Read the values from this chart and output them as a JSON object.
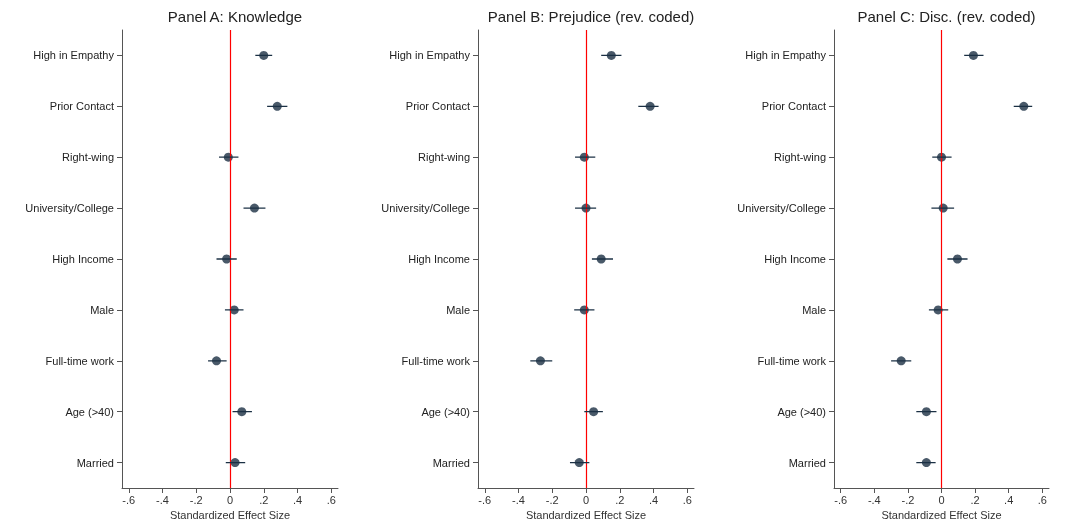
{
  "chart_data": [
    {
      "type": "scatter",
      "title": "Panel A: Knowledge",
      "xlabel": "Standardized Effect Size",
      "orientation": "horizontal",
      "categories": [
        "High in Empathy",
        "Prior Contact",
        "Right-wing",
        "University/College",
        "High Income",
        "Male",
        "Full-time work",
        "Age (>40)",
        "Married"
      ],
      "values": [
        0.2,
        0.28,
        -0.01,
        0.145,
        -0.02,
        0.025,
        -0.08,
        0.07,
        0.03
      ],
      "errors": [
        [
          0.15,
          0.25
        ],
        [
          0.22,
          0.34
        ],
        [
          -0.065,
          0.05
        ],
        [
          0.08,
          0.21
        ],
        [
          -0.08,
          0.04
        ],
        [
          -0.03,
          0.08
        ],
        [
          -0.13,
          -0.02
        ],
        [
          0.015,
          0.13
        ],
        [
          -0.025,
          0.09
        ]
      ],
      "color": "#1b3044",
      "marker": "circle",
      "grid": false,
      "xlim": [
        -0.64,
        0.64
      ],
      "xticks": [
        {
          "value": -0.6,
          "label": "-.6"
        },
        {
          "value": -0.4,
          "label": "-.4"
        },
        {
          "value": -0.2,
          "label": "-.2"
        },
        {
          "value": 0,
          "label": "0"
        },
        {
          "value": 0.2,
          "label": ".2"
        },
        {
          "value": 0.4,
          "label": ".4"
        },
        {
          "value": 0.6,
          "label": ".6"
        }
      ],
      "ref_lines": [
        {
          "axis": "x",
          "value": 0,
          "color": "#ff0000"
        }
      ]
    },
    {
      "type": "scatter",
      "title": "Panel B: Prejudice (rev. coded)",
      "xlabel": "Standardized Effect Size",
      "orientation": "horizontal",
      "categories": [
        "High in Empathy",
        "Prior Contact",
        "Right-wing",
        "University/College",
        "High Income",
        "Male",
        "Full-time work",
        "Age (>40)",
        "Married"
      ],
      "values": [
        0.15,
        0.38,
        -0.01,
        0,
        0.09,
        -0.01,
        -0.27,
        0.045,
        -0.04
      ],
      "errors": [
        [
          0.09,
          0.21
        ],
        [
          0.31,
          0.43
        ],
        [
          -0.065,
          0.055
        ],
        [
          -0.065,
          0.06
        ],
        [
          0.035,
          0.16
        ],
        [
          -0.07,
          0.05
        ],
        [
          -0.33,
          -0.2
        ],
        [
          -0.01,
          0.1
        ],
        [
          -0.095,
          0.02
        ]
      ],
      "color": "#1b3044",
      "marker": "circle",
      "grid": false,
      "xlim": [
        -0.64,
        0.64
      ],
      "xticks": [
        {
          "value": -0.6,
          "label": "-.6"
        },
        {
          "value": -0.4,
          "label": "-.4"
        },
        {
          "value": -0.2,
          "label": "-.2"
        },
        {
          "value": 0,
          "label": "0"
        },
        {
          "value": 0.2,
          "label": ".2"
        },
        {
          "value": 0.4,
          "label": ".4"
        },
        {
          "value": 0.6,
          "label": ".6"
        }
      ],
      "ref_lines": [
        {
          "axis": "x",
          "value": 0,
          "color": "#ff0000"
        }
      ]
    },
    {
      "type": "scatter",
      "title": "Panel C: Disc. (rev. coded)",
      "xlabel": "Standardized Effect Size",
      "orientation": "horizontal",
      "categories": [
        "High in Empathy",
        "Prior Contact",
        "Right-wing",
        "University/College",
        "High Income",
        "Male",
        "Full-time work",
        "Age (>40)",
        "Married"
      ],
      "values": [
        0.19,
        0.49,
        0,
        0.01,
        0.095,
        -0.02,
        -0.24,
        -0.09,
        -0.09
      ],
      "errors": [
        [
          0.135,
          0.25
        ],
        [
          0.43,
          0.54
        ],
        [
          -0.055,
          0.06
        ],
        [
          -0.06,
          0.075
        ],
        [
          0.035,
          0.155
        ],
        [
          -0.075,
          0.04
        ],
        [
          -0.3,
          -0.18
        ],
        [
          -0.15,
          -0.03
        ],
        [
          -0.15,
          -0.035
        ]
      ],
      "color": "#1b3044",
      "marker": "circle",
      "grid": false,
      "xlim": [
        -0.64,
        0.64
      ],
      "xticks": [
        {
          "value": -0.6,
          "label": "-.6"
        },
        {
          "value": -0.4,
          "label": "-.4"
        },
        {
          "value": -0.2,
          "label": "-.2"
        },
        {
          "value": 0,
          "label": "0"
        },
        {
          "value": 0.2,
          "label": ".2"
        },
        {
          "value": 0.4,
          "label": ".4"
        },
        {
          "value": 0.6,
          "label": ".6"
        }
      ],
      "ref_lines": [
        {
          "axis": "x",
          "value": 0,
          "color": "#ff0000"
        }
      ]
    }
  ]
}
